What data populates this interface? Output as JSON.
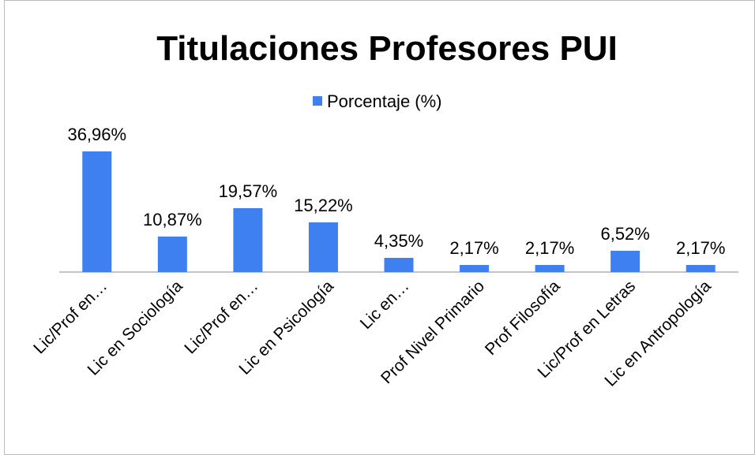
{
  "chart_data": {
    "type": "bar",
    "title": "Titulaciones Profesores PUI",
    "series": [
      {
        "name": "Porcentaje (%)",
        "color": "#3f80f0",
        "values": [
          36.96,
          10.87,
          19.57,
          15.22,
          4.35,
          2.17,
          2.17,
          6.52,
          2.17
        ],
        "value_labels": [
          "36,96%",
          "10,87%",
          "19,57%",
          "15,22%",
          "4,35%",
          "2,17%",
          "2,17%",
          "6,52%",
          "2,17%"
        ]
      }
    ],
    "categories": [
      "Lic/Prof en…",
      "Lic en Sociología",
      "Lic/Prof en…",
      "Lic en Psicología",
      "Lic en…",
      "Prof Nivel Primario",
      "Prof Filosofía",
      "Lic/Prof en Letras",
      "Lic en Antropología"
    ],
    "legend": "top"
  }
}
